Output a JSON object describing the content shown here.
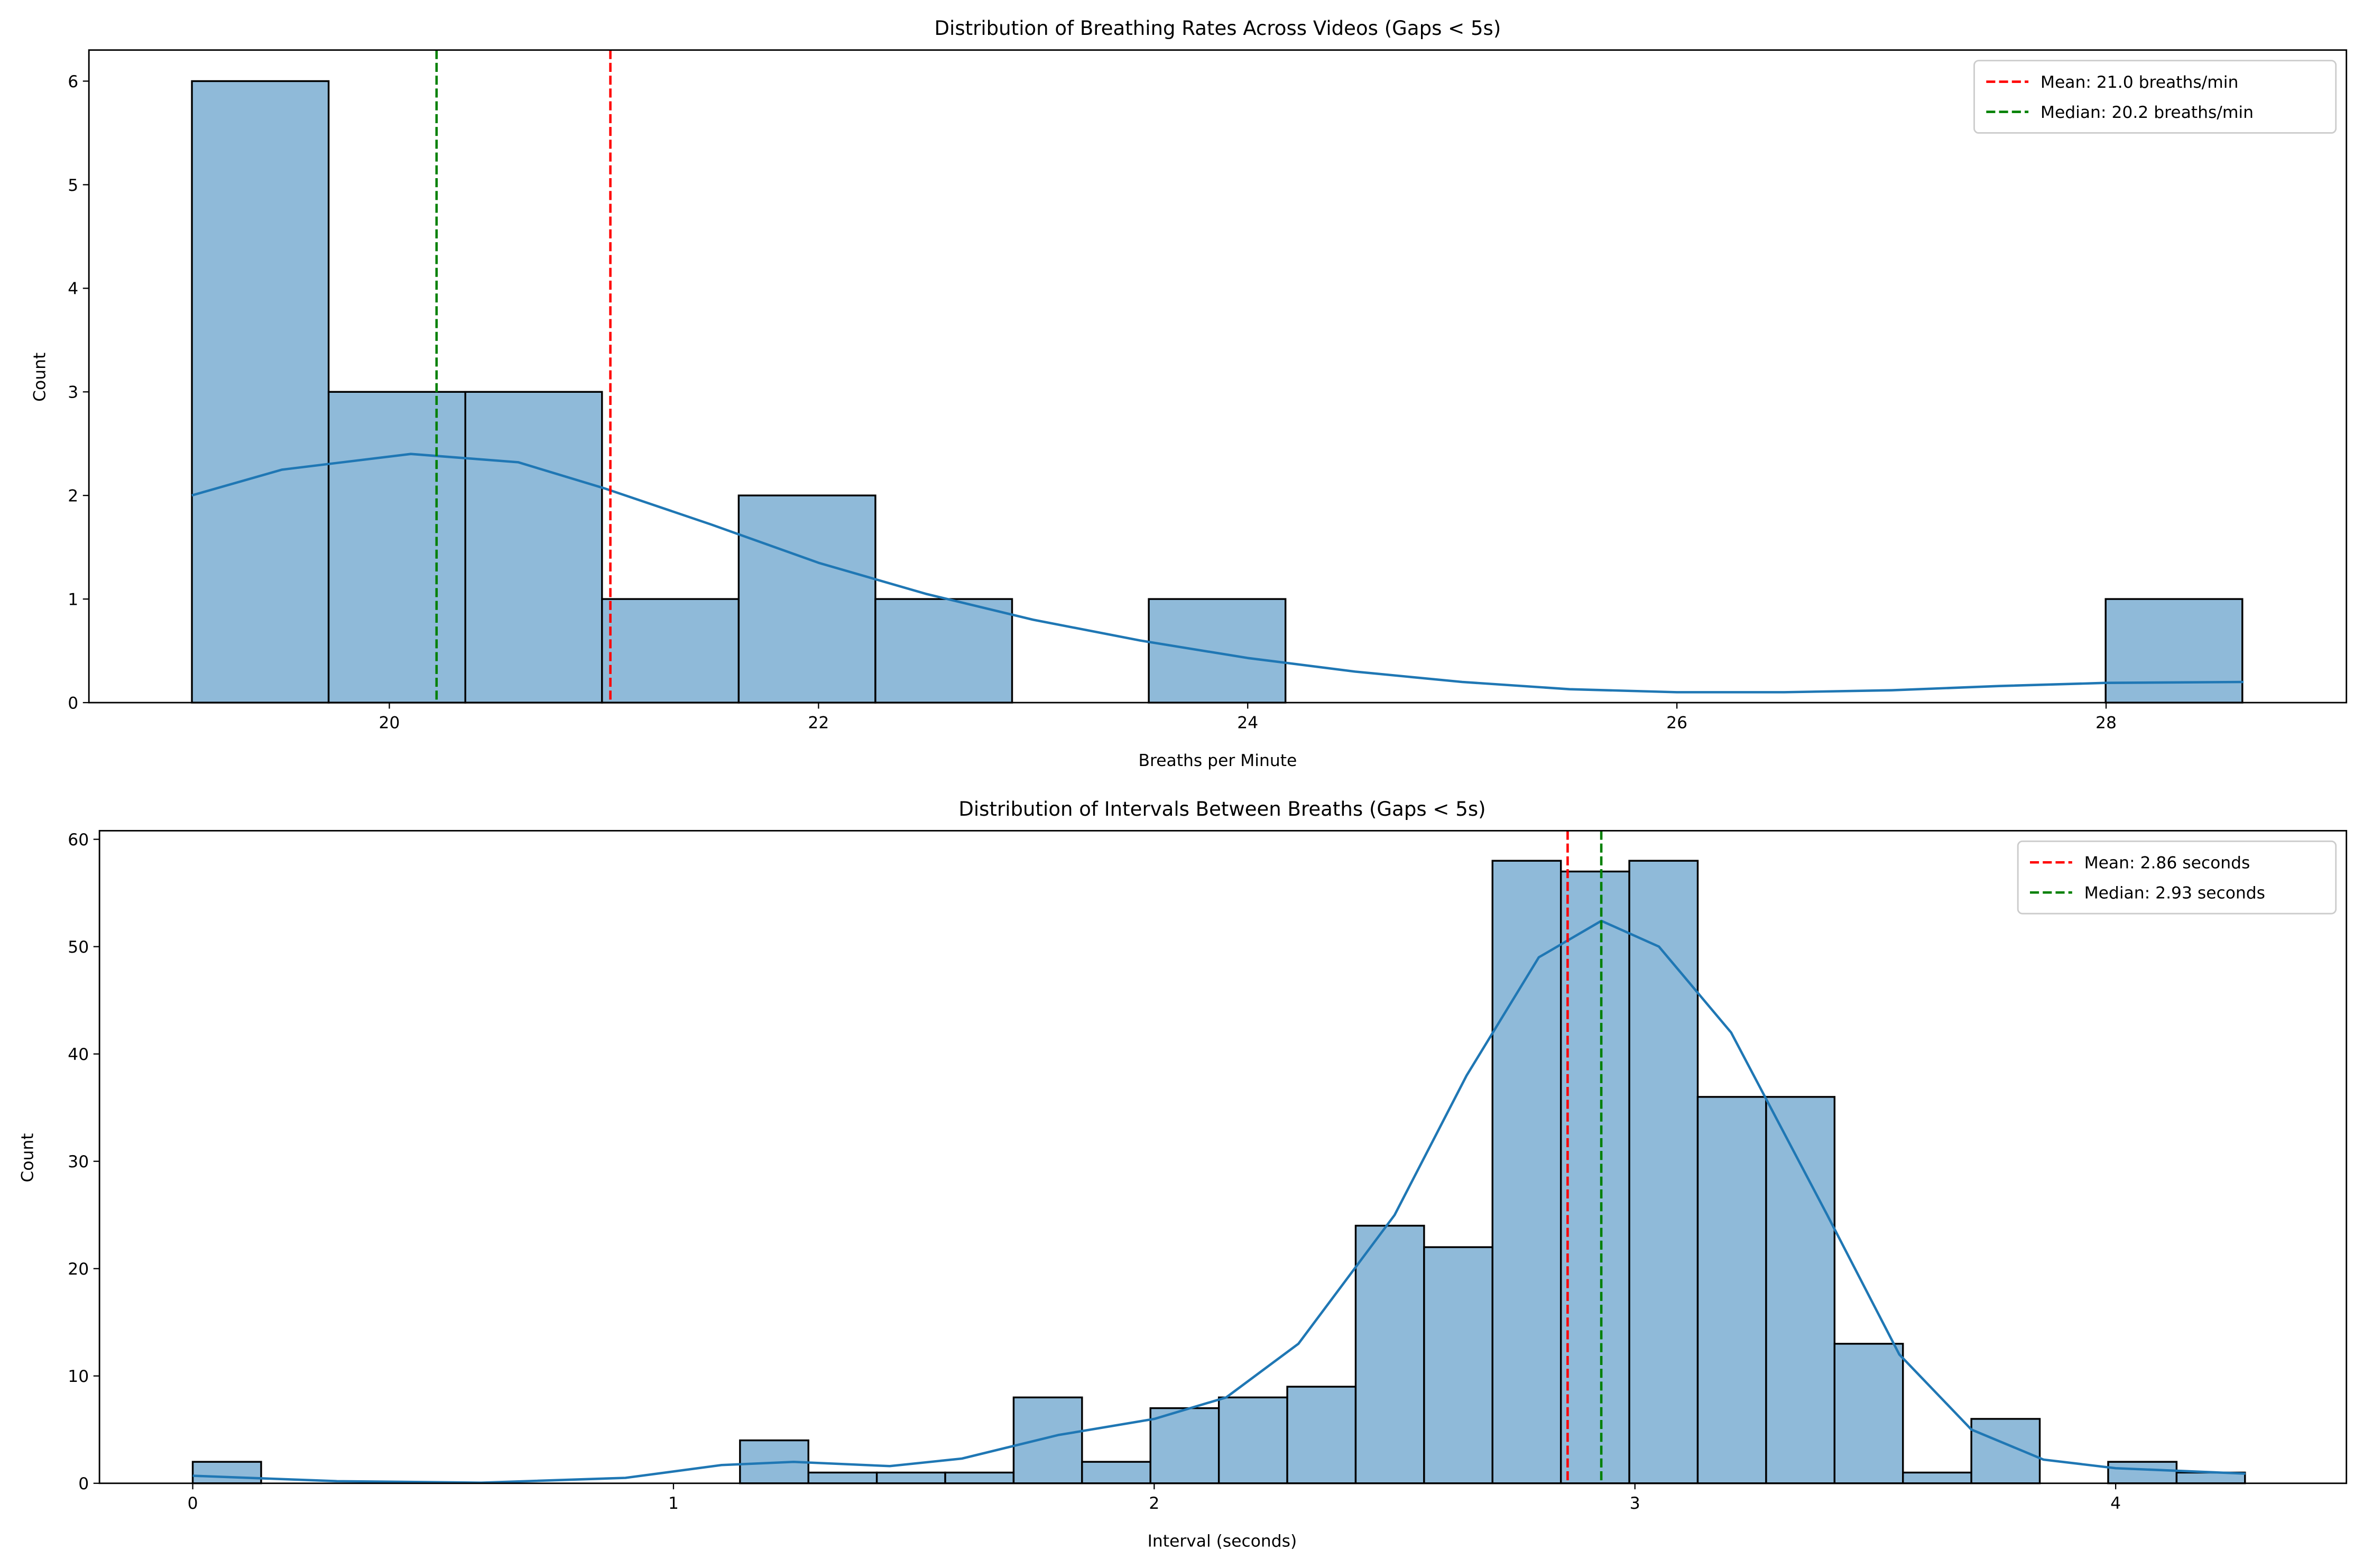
{
  "chart_data": [
    {
      "type": "bar",
      "title": "Distribution of Breathing Rates Across Videos (Gaps < 5s)",
      "xlabel": "Breaths per Minute",
      "ylabel": "Count",
      "xlim": [
        18.6,
        29.12
      ],
      "ylim": [
        0,
        6.3
      ],
      "xticks": [
        "20",
        "22",
        "24",
        "26",
        "28"
      ],
      "xtick_values": [
        20,
        22,
        24,
        26,
        28
      ],
      "yticks": [
        "0",
        "1",
        "2",
        "3",
        "4",
        "5",
        "6"
      ],
      "ytick_values": [
        0,
        1,
        2,
        3,
        4,
        5,
        6
      ],
      "bin_start": 19.08,
      "bin_width": 0.637,
      "counts": [
        6,
        3,
        3,
        1,
        2,
        1,
        0,
        1,
        0,
        0,
        0,
        0,
        0,
        0,
        1
      ],
      "kde": [
        [
          19.08,
          2.0
        ],
        [
          19.5,
          2.25
        ],
        [
          20.1,
          2.4
        ],
        [
          20.6,
          2.32
        ],
        [
          21.0,
          2.07
        ],
        [
          21.5,
          1.72
        ],
        [
          22.0,
          1.35
        ],
        [
          22.5,
          1.05
        ],
        [
          23.0,
          0.8
        ],
        [
          23.5,
          0.6
        ],
        [
          24.0,
          0.43
        ],
        [
          24.5,
          0.3
        ],
        [
          25.0,
          0.2
        ],
        [
          25.5,
          0.13
        ],
        [
          26.0,
          0.1
        ],
        [
          26.5,
          0.1
        ],
        [
          27.0,
          0.12
        ],
        [
          27.5,
          0.16
        ],
        [
          28.0,
          0.19
        ],
        [
          28.64,
          0.2
        ]
      ],
      "vlines": [
        {
          "label": "Mean: 21.0 breaths/min",
          "x": 21.03,
          "color": "#ff0000"
        },
        {
          "label": "Median: 20.2 breaths/min",
          "x": 20.22,
          "color": "#008000"
        }
      ],
      "legend": "top-right",
      "bar_color": "#8fbad9",
      "kde_color": "#1f77b4"
    },
    {
      "type": "bar",
      "title": "Distribution of Intervals Between Breaths (Gaps < 5s)",
      "xlabel": "Interval (seconds)",
      "ylabel": "Count",
      "xlim": [
        -0.194,
        4.48
      ],
      "ylim": [
        0,
        60.8
      ],
      "xticks": [
        "0",
        "1",
        "2",
        "3",
        "4"
      ],
      "xtick_values": [
        0,
        1,
        2,
        3,
        4
      ],
      "yticks": [
        "0",
        "10",
        "20",
        "30",
        "40",
        "50",
        "60"
      ],
      "ytick_values": [
        0,
        10,
        20,
        30,
        40,
        50,
        60
      ],
      "bin_start": 0,
      "bin_width": 0.1423,
      "counts": [
        2,
        0,
        0,
        0,
        0,
        0,
        0,
        0,
        4,
        1,
        1,
        1,
        8,
        2,
        7,
        8,
        9,
        24,
        22,
        58,
        57,
        58,
        36,
        36,
        13,
        1,
        6,
        0,
        2,
        1
      ],
      "kde": [
        [
          0,
          0.7
        ],
        [
          0.3,
          0.2
        ],
        [
          0.6,
          0.05
        ],
        [
          0.9,
          0.5
        ],
        [
          1.1,
          1.7
        ],
        [
          1.25,
          2.0
        ],
        [
          1.45,
          1.6
        ],
        [
          1.6,
          2.3
        ],
        [
          1.8,
          4.5
        ],
        [
          2.0,
          6.0
        ],
        [
          2.15,
          8.0
        ],
        [
          2.3,
          13
        ],
        [
          2.5,
          25
        ],
        [
          2.65,
          38
        ],
        [
          2.8,
          49
        ],
        [
          2.93,
          52.4
        ],
        [
          3.05,
          50
        ],
        [
          3.2,
          42
        ],
        [
          3.4,
          25
        ],
        [
          3.55,
          12
        ],
        [
          3.7,
          5
        ],
        [
          3.85,
          2.2
        ],
        [
          4.0,
          1.4
        ],
        [
          4.27,
          0.9
        ]
      ],
      "vlines": [
        {
          "label": "Mean: 2.86 seconds",
          "x": 2.86,
          "color": "#ff0000"
        },
        {
          "label": "Median: 2.93 seconds",
          "x": 2.93,
          "color": "#008000"
        }
      ],
      "legend": "top-right",
      "bar_color": "#8fbad9",
      "kde_color": "#1f77b4"
    }
  ]
}
